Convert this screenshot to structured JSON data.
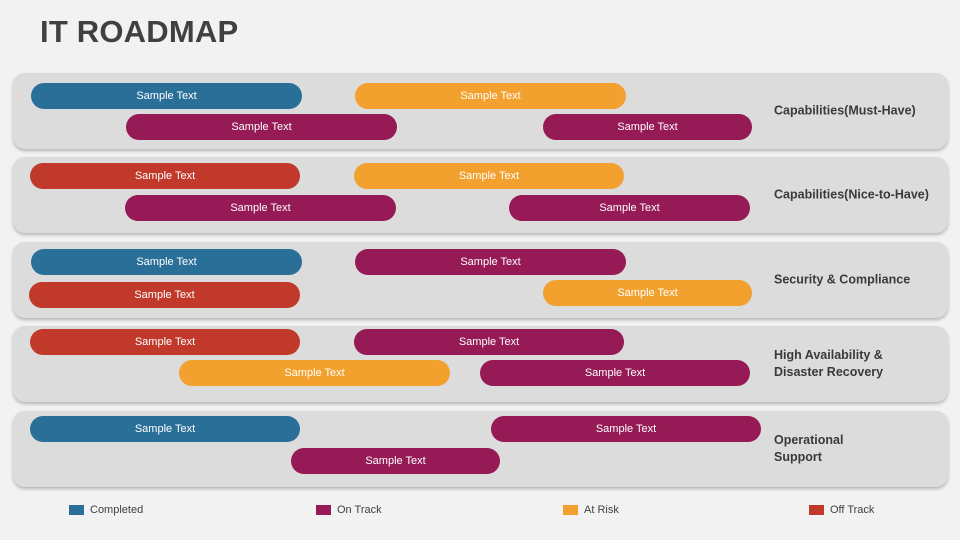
{
  "title": "IT ROADMAP",
  "colors": {
    "completed": "#2a6f97",
    "on_track": "#951a55",
    "at_risk": "#f2a02e",
    "off_track": "#c0392b",
    "panel": "#dcdcdc"
  },
  "legend": [
    {
      "label": "Completed",
      "status": "completed"
    },
    {
      "label": "On Track",
      "status": "on_track"
    },
    {
      "label": "At Risk",
      "status": "at_risk"
    },
    {
      "label": "Off Track",
      "status": "off_track"
    }
  ],
  "rows": [
    {
      "label": "Capabilities(Must-Have)",
      "bars": [
        {
          "text": "Sample Text",
          "status": "completed"
        },
        {
          "text": "Sample Text",
          "status": "at_risk"
        },
        {
          "text": "Sample Text",
          "status": "on_track"
        },
        {
          "text": "Sample Text",
          "status": "on_track"
        }
      ]
    },
    {
      "label": "Capabilities(Nice-to-Have)",
      "bars": [
        {
          "text": "Sample Text",
          "status": "off_track"
        },
        {
          "text": "Sample Text",
          "status": "at_risk"
        },
        {
          "text": "Sample Text",
          "status": "on_track"
        },
        {
          "text": "Sample Text",
          "status": "on_track"
        }
      ]
    },
    {
      "label": "Security & Compliance",
      "bars": [
        {
          "text": "Sample Text",
          "status": "completed"
        },
        {
          "text": "Sample Text",
          "status": "on_track"
        },
        {
          "text": "Sample Text",
          "status": "off_track"
        },
        {
          "text": "Sample Text",
          "status": "at_risk"
        }
      ]
    },
    {
      "label": "High Availability &\nDisaster Recovery",
      "bars": [
        {
          "text": "Sample Text",
          "status": "off_track"
        },
        {
          "text": "Sample Text",
          "status": "on_track"
        },
        {
          "text": "Sample Text",
          "status": "at_risk"
        },
        {
          "text": "Sample Text",
          "status": "on_track"
        }
      ]
    },
    {
      "label": "Operational\nSupport",
      "bars": [
        {
          "text": "Sample Text",
          "status": "completed"
        },
        {
          "text": "Sample Text",
          "status": "on_track"
        },
        {
          "text": "Sample Text",
          "status": "on_track"
        }
      ]
    }
  ]
}
